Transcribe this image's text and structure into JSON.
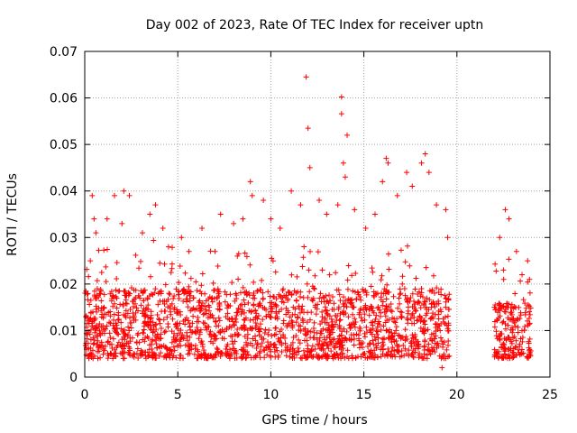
{
  "chart_data": {
    "type": "scatter",
    "title": "Day 002 of 2023, Rate Of TEC Index for receiver uptn",
    "xlabel": "GPS time / hours",
    "ylabel": "ROTI / TECUs",
    "xlim": [
      0,
      25
    ],
    "ylim": [
      0,
      0.07
    ],
    "x_ticks": [
      "0",
      "5",
      "10",
      "15",
      "20",
      "25"
    ],
    "y_ticks": [
      "0",
      "0.01",
      "0.02",
      "0.03",
      "0.04",
      "0.05",
      "0.06",
      "0.07"
    ],
    "grid": true,
    "marker": "+",
    "color": "#ff0000",
    "series": [
      {
        "segments": [
          {
            "x_start": 0.0,
            "x_end": 19.6,
            "y_base_min": 0.004,
            "y_base_max": 0.019
          },
          {
            "x_start": 22.0,
            "x_end": 24.0,
            "y_base_min": 0.004,
            "y_base_max": 0.016
          }
        ],
        "outliers": [
          {
            "x": 0.3,
            "y": 0.025
          },
          {
            "x": 0.4,
            "y": 0.039
          },
          {
            "x": 0.5,
            "y": 0.034
          },
          {
            "x": 0.6,
            "y": 0.031
          },
          {
            "x": 1.2,
            "y": 0.034
          },
          {
            "x": 1.6,
            "y": 0.039
          },
          {
            "x": 2.0,
            "y": 0.033
          },
          {
            "x": 2.1,
            "y": 0.04
          },
          {
            "x": 2.4,
            "y": 0.039
          },
          {
            "x": 3.1,
            "y": 0.031
          },
          {
            "x": 3.5,
            "y": 0.035
          },
          {
            "x": 3.8,
            "y": 0.037
          },
          {
            "x": 4.2,
            "y": 0.032
          },
          {
            "x": 4.5,
            "y": 0.028
          },
          {
            "x": 5.2,
            "y": 0.03
          },
          {
            "x": 5.6,
            "y": 0.027
          },
          {
            "x": 6.3,
            "y": 0.032
          },
          {
            "x": 7.0,
            "y": 0.027
          },
          {
            "x": 7.3,
            "y": 0.035
          },
          {
            "x": 8.0,
            "y": 0.033
          },
          {
            "x": 8.5,
            "y": 0.034
          },
          {
            "x": 8.9,
            "y": 0.042
          },
          {
            "x": 9.0,
            "y": 0.039
          },
          {
            "x": 9.6,
            "y": 0.038
          },
          {
            "x": 10.0,
            "y": 0.034
          },
          {
            "x": 10.5,
            "y": 0.032
          },
          {
            "x": 11.1,
            "y": 0.04
          },
          {
            "x": 11.6,
            "y": 0.037
          },
          {
            "x": 11.9,
            "y": 0.0645
          },
          {
            "x": 12.0,
            "y": 0.0535
          },
          {
            "x": 12.1,
            "y": 0.045
          },
          {
            "x": 12.6,
            "y": 0.038
          },
          {
            "x": 13.0,
            "y": 0.035
          },
          {
            "x": 13.6,
            "y": 0.037
          },
          {
            "x": 13.8,
            "y": 0.0602
          },
          {
            "x": 13.8,
            "y": 0.0566
          },
          {
            "x": 13.9,
            "y": 0.046
          },
          {
            "x": 14.0,
            "y": 0.043
          },
          {
            "x": 14.1,
            "y": 0.052
          },
          {
            "x": 14.5,
            "y": 0.036
          },
          {
            "x": 15.1,
            "y": 0.032
          },
          {
            "x": 15.6,
            "y": 0.035
          },
          {
            "x": 16.0,
            "y": 0.042
          },
          {
            "x": 16.2,
            "y": 0.047
          },
          {
            "x": 16.3,
            "y": 0.046
          },
          {
            "x": 16.8,
            "y": 0.039
          },
          {
            "x": 17.3,
            "y": 0.044
          },
          {
            "x": 17.6,
            "y": 0.041
          },
          {
            "x": 18.1,
            "y": 0.046
          },
          {
            "x": 18.3,
            "y": 0.048
          },
          {
            "x": 18.5,
            "y": 0.044
          },
          {
            "x": 18.9,
            "y": 0.037
          },
          {
            "x": 19.4,
            "y": 0.036
          },
          {
            "x": 19.5,
            "y": 0.03
          },
          {
            "x": 19.2,
            "y": 0.002
          },
          {
            "x": 22.3,
            "y": 0.03
          },
          {
            "x": 22.5,
            "y": 0.023
          },
          {
            "x": 22.6,
            "y": 0.036
          },
          {
            "x": 22.8,
            "y": 0.034
          },
          {
            "x": 23.2,
            "y": 0.027
          },
          {
            "x": 23.5,
            "y": 0.022
          },
          {
            "x": 23.8,
            "y": 0.025
          },
          {
            "x": 23.9,
            "y": 0.021
          }
        ]
      }
    ]
  }
}
